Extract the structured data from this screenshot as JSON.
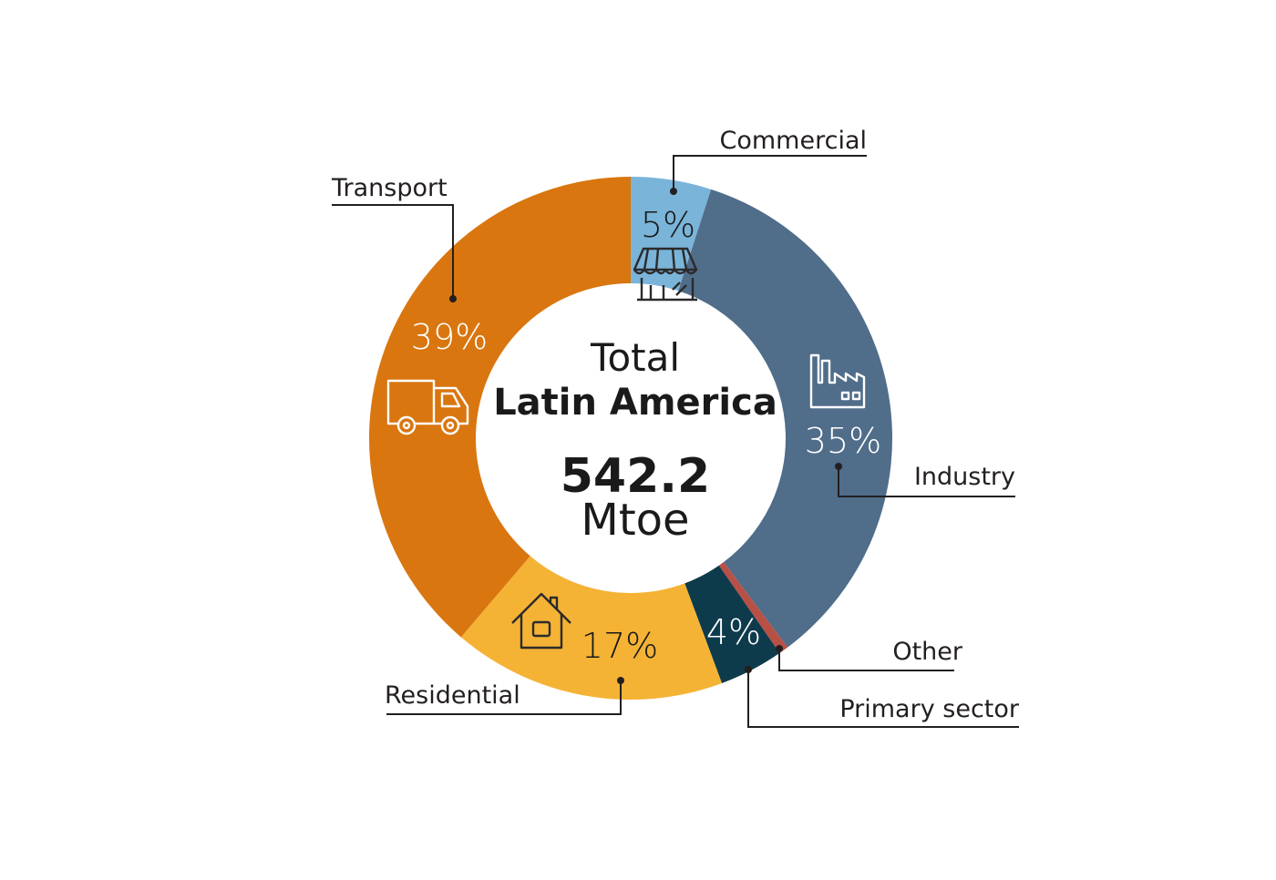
{
  "chart_data": {
    "type": "pie",
    "center": {
      "line1": "Total",
      "line2": "Latin America",
      "value": "542.2",
      "unit": "Mtoe"
    },
    "slices": [
      {
        "key": "commercial",
        "label": "Commercial",
        "value": 5,
        "value_label": "5%",
        "color": "#7ab4d9"
      },
      {
        "key": "industry",
        "label": "Industry",
        "value": 35,
        "value_label": "35%",
        "color": "#506d8a"
      },
      {
        "key": "other",
        "label": "Other",
        "value": 0.6,
        "value_label": "",
        "color": "#b85045"
      },
      {
        "key": "primary",
        "label": "Primary sector",
        "value": 4,
        "value_label": "4%",
        "color": "#0e3b4c"
      },
      {
        "key": "residential",
        "label": "Residential",
        "value": 17,
        "value_label": "17%",
        "color": "#f5b335"
      },
      {
        "key": "transport",
        "label": "Transport",
        "value": 39,
        "value_label": "39%",
        "color": "#d9760f"
      }
    ],
    "icons": {
      "commercial": "shop-icon",
      "industry": "factory-icon",
      "residential": "house-icon",
      "transport": "truck-icon"
    }
  }
}
